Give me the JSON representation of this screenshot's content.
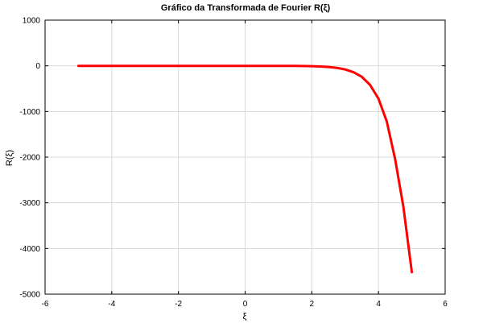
{
  "chart_data": {
    "type": "line",
    "title": "Gráfico da Transformada de Fourier R(ξ)",
    "xlabel": "ξ",
    "ylabel": "R(ξ)",
    "xlim": [
      -6,
      6
    ],
    "ylim": [
      -5000,
      1000
    ],
    "xticks": [
      -6,
      -4,
      -2,
      0,
      2,
      4,
      6
    ],
    "yticks": [
      1000,
      0,
      -1000,
      -2000,
      -3000,
      -4000,
      -5000
    ],
    "grid": true,
    "series": [
      {
        "color": "#ff0000",
        "x": [
          -5,
          -4,
          -3,
          -2,
          -1,
          0,
          1,
          1.5,
          2,
          2.25,
          2.5,
          2.75,
          3,
          3.25,
          3.5,
          3.75,
          4,
          4.25,
          4.5,
          4.75,
          5
        ],
        "y": [
          0,
          0,
          0,
          0,
          0,
          0,
          -1,
          -3,
          -8,
          -14,
          -25,
          -45,
          -80,
          -140,
          -240,
          -420,
          -720,
          -1220,
          -2050,
          -3100,
          -4520
        ]
      }
    ]
  }
}
